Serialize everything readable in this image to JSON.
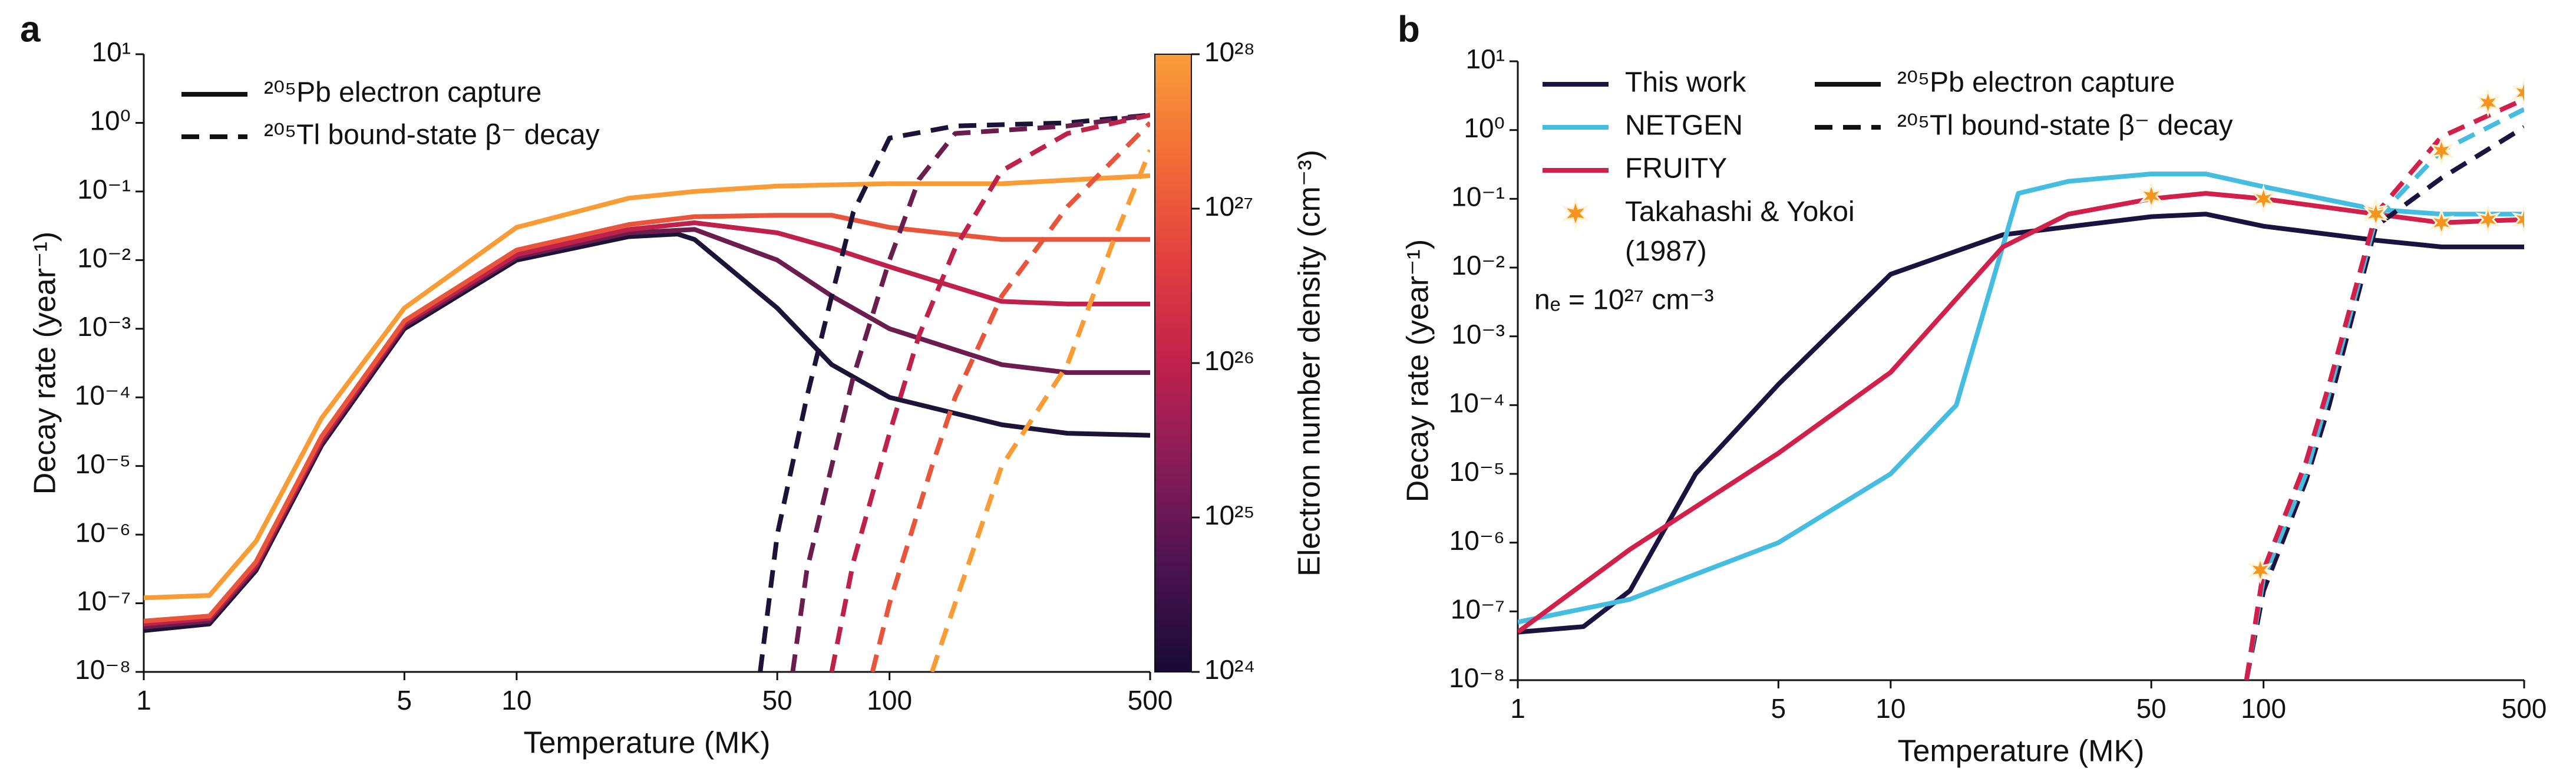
{
  "chart_data": [
    {
      "type": "line",
      "title": "a",
      "xlabel": "Temperature (MK)",
      "ylabel": "Decay rate (year⁻¹)",
      "xscale": "log",
      "yscale": "log",
      "xlim": [
        1,
        500
      ],
      "ylim": [
        1e-08,
        10
      ],
      "xticks": [
        1,
        5,
        10,
        50,
        100,
        500
      ],
      "yticks": [
        {
          "value": 1e-08,
          "label": "10⁻⁸"
        },
        {
          "value": 1e-07,
          "label": "10⁻⁷"
        },
        {
          "value": 1e-06,
          "label": "10⁻⁶"
        },
        {
          "value": 1e-05,
          "label": "10⁻⁵"
        },
        {
          "value": 0.0001,
          "label": "10⁻⁴"
        },
        {
          "value": 0.001,
          "label": "10⁻³"
        },
        {
          "value": 0.01,
          "label": "10⁻²"
        },
        {
          "value": 0.1,
          "label": "10⁻¹"
        },
        {
          "value": 1,
          "label": "10⁰"
        },
        {
          "value": 10,
          "label": "10¹"
        }
      ],
      "style_legend": [
        {
          "label": "²⁰⁵Pb electron capture",
          "dash": "solid"
        },
        {
          "label": "²⁰⁵Tl bound-state β⁻ decay",
          "dash": "dashed"
        }
      ],
      "colorbar": {
        "label": "Electron number density (cm⁻³)",
        "scale": "log",
        "lim": [
          1e+24,
          1e+28
        ],
        "ticks": [
          {
            "value": 1e+24,
            "label": "10²⁴"
          },
          {
            "value": 1e+25,
            "label": "10²⁵"
          },
          {
            "value": 1e+26,
            "label": "10²⁶"
          },
          {
            "value": 1e+27,
            "label": "10²⁷"
          },
          {
            "value": 1e+28,
            "label": "10²⁸"
          }
        ],
        "colors": [
          "#170b35",
          "#4a1250",
          "#861c57",
          "#c0214d",
          "#e2403f",
          "#f26d38",
          "#f99d3a"
        ]
      },
      "series": [
        {
          "color": "#1d1238",
          "style": "solid",
          "x": [
            1,
            1.5,
            2,
            3,
            5,
            10,
            20,
            27,
            30,
            50,
            70,
            100,
            200,
            300,
            500
          ],
          "values": [
            4e-08,
            5e-08,
            3e-07,
            2e-05,
            0.001,
            0.01,
            0.022,
            0.024,
            0.02,
            0.002,
            0.0003,
            0.0001,
            4e-05,
            3e-05,
            2.8e-05
          ]
        },
        {
          "color": "#6b1d4e",
          "style": "solid",
          "x": [
            1,
            1.5,
            2,
            3,
            5,
            10,
            20,
            30,
            50,
            70,
            100,
            200,
            300,
            500
          ],
          "values": [
            4.5e-08,
            5.5e-08,
            3.3e-07,
            2.2e-05,
            0.0011,
            0.011,
            0.025,
            0.028,
            0.01,
            0.003,
            0.001,
            0.0003,
            0.00023,
            0.00023
          ]
        },
        {
          "color": "#c0214a",
          "style": "solid",
          "x": [
            1,
            1.5,
            2,
            3,
            5,
            10,
            20,
            30,
            50,
            70,
            100,
            200,
            300,
            500
          ],
          "values": [
            5e-08,
            6e-08,
            3.6e-07,
            2.4e-05,
            0.0012,
            0.012,
            0.028,
            0.035,
            0.025,
            0.015,
            0.008,
            0.0025,
            0.0023,
            0.0023
          ]
        },
        {
          "color": "#e8553a",
          "style": "solid",
          "x": [
            1,
            1.5,
            2,
            3,
            5,
            10,
            20,
            30,
            50,
            70,
            100,
            200,
            300,
            500
          ],
          "values": [
            5.5e-08,
            6.5e-08,
            4e-07,
            2.7e-05,
            0.0013,
            0.014,
            0.033,
            0.043,
            0.045,
            0.045,
            0.03,
            0.02,
            0.02,
            0.02
          ]
        },
        {
          "color": "#f99c35",
          "style": "solid",
          "x": [
            1,
            1.5,
            2,
            3,
            5,
            10,
            20,
            30,
            50,
            100,
            200,
            500
          ],
          "values": [
            1.2e-07,
            1.3e-07,
            8e-07,
            5e-05,
            0.002,
            0.03,
            0.08,
            0.1,
            0.12,
            0.13,
            0.13,
            0.17
          ]
        },
        {
          "color": "#1d1238",
          "style": "dashed",
          "x": [
            45,
            50,
            60,
            70,
            80,
            100,
            150,
            300,
            500
          ],
          "values": [
            1e-08,
            1e-06,
            0.0001,
            0.003,
            0.05,
            0.6,
            0.9,
            1.0,
            1.3
          ]
        },
        {
          "color": "#6b1d4e",
          "style": "dashed",
          "x": [
            55,
            60,
            70,
            80,
            100,
            120,
            150,
            300,
            500
          ],
          "values": [
            1e-08,
            3e-07,
            1e-05,
            0.0002,
            0.01,
            0.15,
            0.7,
            0.9,
            1.3
          ]
        },
        {
          "color": "#c0214a",
          "style": "dashed",
          "x": [
            70,
            80,
            100,
            120,
            150,
            200,
            300,
            500
          ],
          "values": [
            1e-08,
            4e-07,
            3e-05,
            0.0008,
            0.015,
            0.2,
            0.7,
            1.3
          ]
        },
        {
          "color": "#e8553a",
          "style": "dashed",
          "x": [
            90,
            100,
            130,
            150,
            200,
            300,
            500
          ],
          "values": [
            1e-08,
            1e-07,
            1e-05,
            0.0001,
            0.003,
            0.06,
            1.0
          ]
        },
        {
          "color": "#f99c35",
          "style": "dashed",
          "x": [
            130,
            150,
            200,
            300,
            400,
            500
          ],
          "values": [
            1e-08,
            1e-07,
            1e-05,
            0.0003,
            0.02,
            0.4
          ]
        }
      ]
    },
    {
      "type": "line",
      "title": "b",
      "xlabel": "Temperature (MK)",
      "ylabel": "Decay rate (year⁻¹)",
      "xscale": "log",
      "yscale": "log",
      "xlim": [
        1,
        500
      ],
      "ylim": [
        1e-08,
        10
      ],
      "xticks": [
        1,
        5,
        10,
        50,
        100,
        500
      ],
      "yticks": [
        {
          "value": 1e-08,
          "label": "10⁻⁸"
        },
        {
          "value": 1e-07,
          "label": "10⁻⁷"
        },
        {
          "value": 1e-06,
          "label": "10⁻⁶"
        },
        {
          "value": 1e-05,
          "label": "10⁻⁵"
        },
        {
          "value": 0.0001,
          "label": "10⁻⁴"
        },
        {
          "value": 0.001,
          "label": "10⁻³"
        },
        {
          "value": 0.01,
          "label": "10⁻²"
        },
        {
          "value": 0.1,
          "label": "10⁻¹"
        },
        {
          "value": 1,
          "label": "10⁰"
        },
        {
          "value": 10,
          "label": "10¹"
        }
      ],
      "style_legend": [
        {
          "label": "²⁰⁵Pb electron capture",
          "dash": "solid"
        },
        {
          "label": "²⁰⁵Tl bound-state β⁻ decay",
          "dash": "dashed"
        }
      ],
      "annotation": "nₑ = 10²⁷ cm⁻³",
      "series": [
        {
          "name": "This work",
          "color": "#1b1240",
          "style": "solid",
          "x": [
            1,
            1.5,
            2,
            3,
            5,
            10,
            20,
            50,
            70,
            100,
            200,
            300,
            500
          ],
          "values": [
            5e-08,
            6e-08,
            2e-07,
            1e-05,
            0.0002,
            0.008,
            0.03,
            0.055,
            0.06,
            0.04,
            0.025,
            0.02,
            0.02
          ]
        },
        {
          "name": "NETGEN",
          "color": "#45bde0",
          "style": "solid",
          "x": [
            1,
            2,
            5,
            10,
            15,
            22,
            30,
            50,
            70,
            100,
            200,
            300,
            500
          ],
          "values": [
            7e-08,
            1.5e-07,
            1e-06,
            1e-05,
            0.0001,
            0.12,
            0.18,
            0.23,
            0.23,
            0.15,
            0.07,
            0.06,
            0.06
          ]
        },
        {
          "name": "FRUITY",
          "color": "#d1204a",
          "style": "solid",
          "x": [
            1,
            2,
            5,
            10,
            20,
            30,
            50,
            70,
            100,
            200,
            300,
            500
          ],
          "values": [
            5e-08,
            8e-07,
            2e-05,
            0.0003,
            0.02,
            0.06,
            0.1,
            0.12,
            0.1,
            0.06,
            0.045,
            0.05
          ]
        },
        {
          "color": "#1b1240",
          "style": "dashed",
          "x": [
            90,
            100,
            130,
            150,
            200,
            300,
            500
          ],
          "values": [
            1e-08,
            2e-07,
            8e-06,
            0.0001,
            0.04,
            0.2,
            1.1
          ]
        },
        {
          "color": "#45bde0",
          "style": "dashed",
          "x": [
            90,
            100,
            130,
            150,
            200,
            300,
            500
          ],
          "values": [
            1e-08,
            3e-07,
            1e-05,
            0.00015,
            0.05,
            0.5,
            2.0
          ]
        },
        {
          "color": "#d1204a",
          "style": "dashed",
          "x": [
            90,
            100,
            130,
            150,
            200,
            300,
            500
          ],
          "values": [
            1e-08,
            4e-07,
            1.5e-05,
            0.0002,
            0.06,
            0.8,
            2.8
          ]
        },
        {
          "name": "Takahashi & Yokoi (1987)",
          "color": "#f7941d",
          "style": "star",
          "x": [
            50,
            100,
            200,
            300,
            400,
            500,
            98,
            200,
            300,
            400,
            500
          ],
          "values": [
            0.11,
            0.1,
            0.065,
            0.045,
            0.05,
            0.05,
            4e-07,
            0.06,
            0.5,
            2.5,
            3.5
          ]
        }
      ]
    }
  ]
}
